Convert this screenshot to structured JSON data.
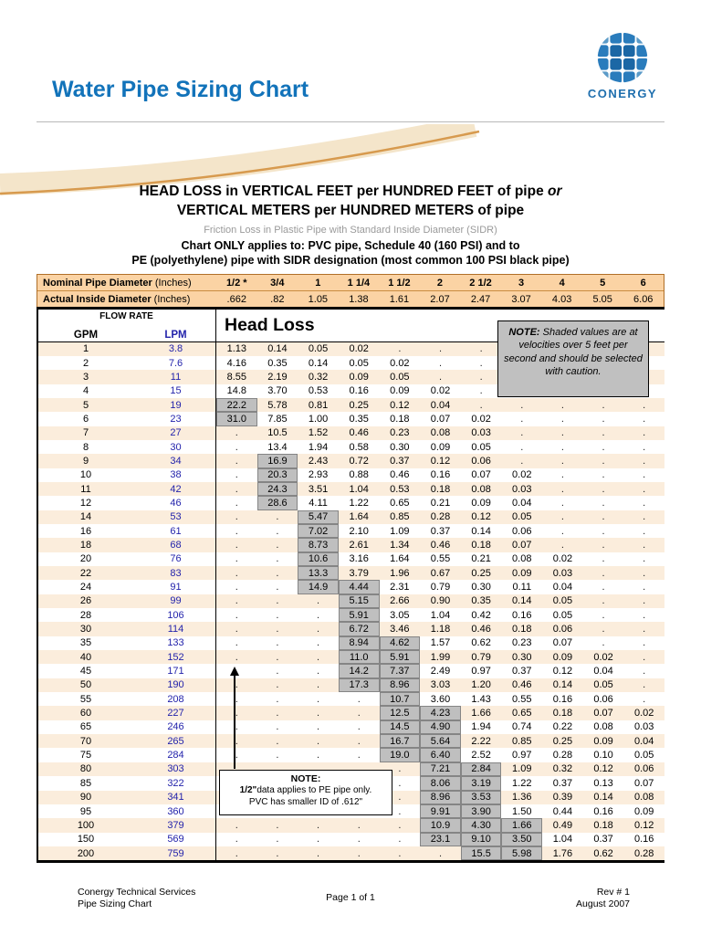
{
  "page": {
    "title": "Water Pipe Sizing Chart",
    "logo_text": "CONERGY"
  },
  "heading": {
    "line1_main": "HEAD LOSS in VERTICAL FEET per HUNDRED FEET of pipe ",
    "line1_italic": "or",
    "line2": "VERTICAL METERS per HUNDRED METERS of pipe",
    "line3": "Friction Loss in Plastic Pipe with Standard Inside Diameter (SIDR)",
    "line4": "Chart ONLY applies to: PVC pipe, Schedule 40 (160 PSI) and to",
    "line5": "PE (polyethylene) pipe with SIDR designation (most common 100 PSI black pipe)"
  },
  "table": {
    "nominal_label_bold": "Nominal Pipe Diameter",
    "nominal_label_rest": " (Inches)",
    "actual_label_bold": "Actual Inside Diameter",
    "actual_label_rest": " (Inches)",
    "nominal_values": [
      "1/2 *",
      "3/4",
      "1",
      "1 1/4",
      "1 1/2",
      "2",
      "2 1/2",
      "3",
      "4",
      "5",
      "6"
    ],
    "actual_values": [
      ".662",
      ".82",
      "1.05",
      "1.38",
      "1.61",
      "2.07",
      "2.47",
      "3.07",
      "4.03",
      "5.05",
      "6.06"
    ],
    "flow_rate_label": "FLOW RATE",
    "gpm_label": "GPM",
    "lpm_label": "LPM",
    "head_loss_title": "Head Loss",
    "rows": [
      {
        "gpm": "1",
        "lpm": "3.8",
        "cells": [
          "1.13",
          "0.14",
          "0.05",
          "0.02",
          ".",
          ".",
          ".",
          ".",
          ".",
          ".",
          "."
        ],
        "shaded": []
      },
      {
        "gpm": "2",
        "lpm": "7.6",
        "cells": [
          "4.16",
          "0.35",
          "0.14",
          "0.05",
          "0.02",
          ".",
          ".",
          ".",
          ".",
          ".",
          "."
        ],
        "shaded": []
      },
      {
        "gpm": "3",
        "lpm": "11",
        "cells": [
          "8.55",
          "2.19",
          "0.32",
          "0.09",
          "0.05",
          ".",
          ".",
          ".",
          ".",
          ".",
          "."
        ],
        "shaded": []
      },
      {
        "gpm": "4",
        "lpm": "15",
        "cells": [
          "14.8",
          "3.70",
          "0.53",
          "0.16",
          "0.09",
          "0.02",
          ".",
          ".",
          ".",
          ".",
          "."
        ],
        "shaded": []
      },
      {
        "gpm": "5",
        "lpm": "19",
        "cells": [
          "22.2",
          "5.78",
          "0.81",
          "0.25",
          "0.12",
          "0.04",
          ".",
          ".",
          ".",
          ".",
          "."
        ],
        "shaded": [
          0
        ]
      },
      {
        "gpm": "6",
        "lpm": "23",
        "cells": [
          "31.0",
          "7.85",
          "1.00",
          "0.35",
          "0.18",
          "0.07",
          "0.02",
          ".",
          ".",
          ".",
          "."
        ],
        "shaded": [
          0
        ]
      },
      {
        "gpm": "7",
        "lpm": "27",
        "cells": [
          ".",
          "10.5",
          "1.52",
          "0.46",
          "0.23",
          "0.08",
          "0.03",
          ".",
          ".",
          ".",
          "."
        ],
        "shaded": []
      },
      {
        "gpm": "8",
        "lpm": "30",
        "cells": [
          ".",
          "13.4",
          "1.94",
          "0.58",
          "0.30",
          "0.09",
          "0.05",
          ".",
          ".",
          ".",
          "."
        ],
        "shaded": []
      },
      {
        "gpm": "9",
        "lpm": "34",
        "cells": [
          ".",
          "16.9",
          "2.43",
          "0.72",
          "0.37",
          "0.12",
          "0.06",
          ".",
          ".",
          ".",
          "."
        ],
        "shaded": [
          1
        ]
      },
      {
        "gpm": "10",
        "lpm": "38",
        "cells": [
          ".",
          "20.3",
          "2.93",
          "0.88",
          "0.46",
          "0.16",
          "0.07",
          "0.02",
          ".",
          ".",
          "."
        ],
        "shaded": [
          1
        ]
      },
      {
        "gpm": "11",
        "lpm": "42",
        "cells": [
          ".",
          "24.3",
          "3.51",
          "1.04",
          "0.53",
          "0.18",
          "0.08",
          "0.03",
          ".",
          ".",
          "."
        ],
        "shaded": [
          1
        ]
      },
      {
        "gpm": "12",
        "lpm": "46",
        "cells": [
          ".",
          "28.6",
          "4.11",
          "1.22",
          "0.65",
          "0.21",
          "0.09",
          "0.04",
          ".",
          ".",
          "."
        ],
        "shaded": [
          1
        ]
      },
      {
        "gpm": "14",
        "lpm": "53",
        "cells": [
          ".",
          ".",
          "5.47",
          "1.64",
          "0.85",
          "0.28",
          "0.12",
          "0.05",
          ".",
          ".",
          "."
        ],
        "shaded": [
          2
        ]
      },
      {
        "gpm": "16",
        "lpm": "61",
        "cells": [
          ".",
          ".",
          "7.02",
          "2.10",
          "1.09",
          "0.37",
          "0.14",
          "0.06",
          ".",
          ".",
          "."
        ],
        "shaded": [
          2
        ]
      },
      {
        "gpm": "18",
        "lpm": "68",
        "cells": [
          ".",
          ".",
          "8.73",
          "2.61",
          "1.34",
          "0.46",
          "0.18",
          "0.07",
          ".",
          ".",
          "."
        ],
        "shaded": [
          2
        ]
      },
      {
        "gpm": "20",
        "lpm": "76",
        "cells": [
          ".",
          ".",
          "10.6",
          "3.16",
          "1.64",
          "0.55",
          "0.21",
          "0.08",
          "0.02",
          ".",
          "."
        ],
        "shaded": [
          2
        ]
      },
      {
        "gpm": "22",
        "lpm": "83",
        "cells": [
          ".",
          ".",
          "13.3",
          "3.79",
          "1.96",
          "0.67",
          "0.25",
          "0.09",
          "0.03",
          ".",
          "."
        ],
        "shaded": [
          2
        ]
      },
      {
        "gpm": "24",
        "lpm": "91",
        "cells": [
          ".",
          ".",
          "14.9",
          "4.44",
          "2.31",
          "0.79",
          "0.30",
          "0.11",
          "0.04",
          ".",
          "."
        ],
        "shaded": [
          2,
          3
        ]
      },
      {
        "gpm": "26",
        "lpm": "99",
        "cells": [
          ".",
          ".",
          ".",
          "5.15",
          "2.66",
          "0.90",
          "0.35",
          "0.14",
          "0.05",
          ".",
          "."
        ],
        "shaded": [
          3
        ]
      },
      {
        "gpm": "28",
        "lpm": "106",
        "cells": [
          ".",
          ".",
          ".",
          "5.91",
          "3.05",
          "1.04",
          "0.42",
          "0.16",
          "0.05",
          ".",
          "."
        ],
        "shaded": [
          3
        ]
      },
      {
        "gpm": "30",
        "lpm": "114",
        "cells": [
          ".",
          ".",
          ".",
          "6.72",
          "3.46",
          "1.18",
          "0.46",
          "0.18",
          "0.06",
          ".",
          "."
        ],
        "shaded": [
          3
        ]
      },
      {
        "gpm": "35",
        "lpm": "133",
        "cells": [
          ".",
          ".",
          ".",
          "8.94",
          "4.62",
          "1.57",
          "0.62",
          "0.23",
          "0.07",
          ".",
          "."
        ],
        "shaded": [
          3,
          4
        ]
      },
      {
        "gpm": "40",
        "lpm": "152",
        "cells": [
          ".",
          ".",
          ".",
          "11.0",
          "5.91",
          "1.99",
          "0.79",
          "0.30",
          "0.09",
          "0.02",
          "."
        ],
        "shaded": [
          3,
          4
        ]
      },
      {
        "gpm": "45",
        "lpm": "171",
        "cells": [
          ".",
          ".",
          ".",
          "14.2",
          "7.37",
          "2.49",
          "0.97",
          "0.37",
          "0.12",
          "0.04",
          "."
        ],
        "shaded": [
          3,
          4
        ]
      },
      {
        "gpm": "50",
        "lpm": "190",
        "cells": [
          ".",
          ".",
          ".",
          "17.3",
          "8.96",
          "3.03",
          "1.20",
          "0.46",
          "0.14",
          "0.05",
          "."
        ],
        "shaded": [
          3,
          4
        ]
      },
      {
        "gpm": "55",
        "lpm": "208",
        "cells": [
          ".",
          ".",
          ".",
          ".",
          "10.7",
          "3.60",
          "1.43",
          "0.55",
          "0.16",
          "0.06",
          "."
        ],
        "shaded": [
          4
        ]
      },
      {
        "gpm": "60",
        "lpm": "227",
        "cells": [
          ".",
          ".",
          ".",
          ".",
          "12.5",
          "4.23",
          "1.66",
          "0.65",
          "0.18",
          "0.07",
          "0.02"
        ],
        "shaded": [
          4,
          5
        ]
      },
      {
        "gpm": "65",
        "lpm": "246",
        "cells": [
          ".",
          ".",
          ".",
          ".",
          "14.5",
          "4.90",
          "1.94",
          "0.74",
          "0.22",
          "0.08",
          "0.03"
        ],
        "shaded": [
          4,
          5
        ]
      },
      {
        "gpm": "70",
        "lpm": "265",
        "cells": [
          ".",
          ".",
          ".",
          ".",
          "16.7",
          "5.64",
          "2.22",
          "0.85",
          "0.25",
          "0.09",
          "0.04"
        ],
        "shaded": [
          4,
          5
        ]
      },
      {
        "gpm": "75",
        "lpm": "284",
        "cells": [
          ".",
          ".",
          ".",
          ".",
          "19.0",
          "6.40",
          "2.52",
          "0.97",
          "0.28",
          "0.10",
          "0.05"
        ],
        "shaded": [
          4,
          5
        ]
      },
      {
        "gpm": "80",
        "lpm": "303",
        "cells": [
          ".",
          ".",
          ".",
          ".",
          ".",
          "7.21",
          "2.84",
          "1.09",
          "0.32",
          "0.12",
          "0.06"
        ],
        "shaded": [
          5,
          6
        ]
      },
      {
        "gpm": "85",
        "lpm": "322",
        "cells": [
          ".",
          ".",
          ".",
          ".",
          ".",
          "8.06",
          "3.19",
          "1.22",
          "0.37",
          "0.13",
          "0.07"
        ],
        "shaded": [
          5,
          6
        ]
      },
      {
        "gpm": "90",
        "lpm": "341",
        "cells": [
          ".",
          ".",
          ".",
          ".",
          ".",
          "8.96",
          "3.53",
          "1.36",
          "0.39",
          "0.14",
          "0.08"
        ],
        "shaded": [
          5,
          6
        ]
      },
      {
        "gpm": "95",
        "lpm": "360",
        "cells": [
          ".",
          ".",
          ".",
          ".",
          ".",
          "9.91",
          "3.90",
          "1.50",
          "0.44",
          "0.16",
          "0.09"
        ],
        "shaded": [
          5,
          6
        ]
      },
      {
        "gpm": "100",
        "lpm": "379",
        "cells": [
          ".",
          ".",
          ".",
          ".",
          ".",
          "10.9",
          "4.30",
          "1.66",
          "0.49",
          "0.18",
          "0.12"
        ],
        "shaded": [
          5,
          6,
          7
        ]
      },
      {
        "gpm": "150",
        "lpm": "569",
        "cells": [
          ".",
          ".",
          ".",
          ".",
          ".",
          "23.1",
          "9.10",
          "3.50",
          "1.04",
          "0.37",
          "0.16"
        ],
        "shaded": [
          5,
          6,
          7
        ]
      },
      {
        "gpm": "200",
        "lpm": "759",
        "cells": [
          ".",
          ".",
          ".",
          ".",
          ".",
          ".",
          "15.5",
          "5.98",
          "1.76",
          "0.62",
          "0.28"
        ],
        "shaded": [
          6,
          7
        ]
      }
    ]
  },
  "shaded_note": {
    "bold": "NOTE:",
    "text": " Shaded values are at velocities over 5 feet per second and should be selected with caution."
  },
  "half_inch_note": {
    "title": "NOTE:",
    "bold": "1/2\"",
    "rest": "data applies to PE pipe only.",
    "line2": "PVC has smaller ID of .612\""
  },
  "footer": {
    "left1": "Conergy Technical Services",
    "left2": "Pipe Sizing Chart",
    "center": "Page 1 of 1",
    "right1": "Rev #  1",
    "right2": "August 2007"
  },
  "colors": {
    "title_blue": "#1273BA",
    "header_peach": "#FBD3A4",
    "row_peach": "#FBEDDC",
    "shaded_gray": "#BFBFBF",
    "lpm_blue": "#2323AB"
  }
}
